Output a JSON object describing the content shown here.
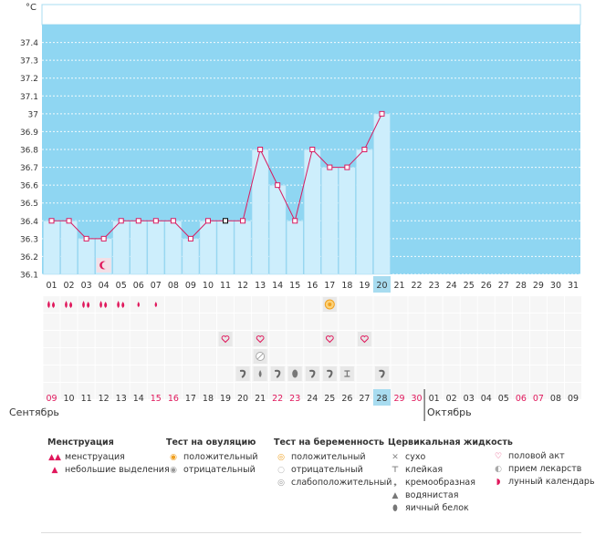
{
  "unit_label": "°C",
  "chart_data": {
    "type": "bar",
    "title": "",
    "ylabel": "°C",
    "ylim": [
      36.1,
      37.5
    ],
    "yticks": [
      "36.1",
      "36.2",
      "36.3",
      "36.4",
      "36.5",
      "36.6",
      "36.7",
      "36.8",
      "36.9",
      "37",
      "37.1",
      "37.2",
      "37.3",
      "37.4"
    ],
    "day_labels": [
      "01",
      "02",
      "03",
      "04",
      "05",
      "06",
      "07",
      "08",
      "09",
      "10",
      "11",
      "12",
      "13",
      "14",
      "15",
      "16",
      "17",
      "18",
      "19",
      "20",
      "21",
      "22",
      "23",
      "24",
      "25",
      "26",
      "27",
      "28",
      "29",
      "30",
      "31"
    ],
    "current_day_index": 19,
    "temps": [
      36.4,
      36.4,
      36.3,
      36.3,
      36.4,
      36.4,
      36.4,
      36.4,
      36.3,
      36.4,
      36.4,
      36.4,
      36.8,
      36.6,
      36.4,
      36.8,
      36.7,
      36.7,
      36.8,
      37.0
    ],
    "selected_index": 10,
    "cycle_dates": [
      "09",
      "10",
      "11",
      "12",
      "13",
      "14",
      "15",
      "16",
      "17",
      "18",
      "19",
      "20",
      "21",
      "22",
      "23",
      "24",
      "25",
      "26",
      "27",
      "28",
      "29",
      "30",
      "01",
      "02",
      "03",
      "04",
      "05",
      "06",
      "07",
      "08",
      "09"
    ],
    "weekend_indices": [
      0,
      6,
      7,
      13,
      14,
      20,
      21,
      27,
      28
    ],
    "month_left": "Сентябрь",
    "month_right": "Октябрь",
    "menstruation": [
      2,
      2,
      2,
      2,
      2,
      1,
      1
    ],
    "moon_index": 3,
    "ovulation_positive_index": 16,
    "intercourse_indices": [
      10,
      12,
      16,
      18
    ],
    "medication_index": 12,
    "cervical_fluid": [
      {
        "i": 11,
        "t": "cream"
      },
      {
        "i": 12,
        "t": "water"
      },
      {
        "i": 13,
        "t": "cream"
      },
      {
        "i": 14,
        "t": "eggwhite"
      },
      {
        "i": 15,
        "t": "cream"
      },
      {
        "i": 16,
        "t": "cream"
      },
      {
        "i": 17,
        "t": "sticky"
      },
      {
        "i": 19,
        "t": "cream"
      }
    ]
  },
  "legend": {
    "menstruation": {
      "title": "Менструация",
      "items": [
        "менструация",
        "небольшие выделения"
      ]
    },
    "ovulation": {
      "title": "Тест на овуляцию",
      "items": [
        "положительный",
        "отрицательный"
      ]
    },
    "pregnancy": {
      "title": "Тест на беременность",
      "items": [
        "положительный",
        "отрицательный",
        "слабоположительный"
      ]
    },
    "cervical": {
      "title": "Цервикальная жидкость",
      "items": [
        "сухо",
        "клейкая",
        "кремообразная",
        "водянистая",
        "яичный белок"
      ]
    },
    "other": {
      "items": [
        "половой акт",
        "прием лекарств",
        "лунный календарь"
      ]
    }
  },
  "colors": {
    "band": "#8fd6f2",
    "bar": "#cdeefc",
    "bar_edge": "#9fd8f0",
    "line": "#d81b60",
    "current": "#a8dcf0",
    "weekend": "#e0185c",
    "grid": "#ffffff"
  }
}
